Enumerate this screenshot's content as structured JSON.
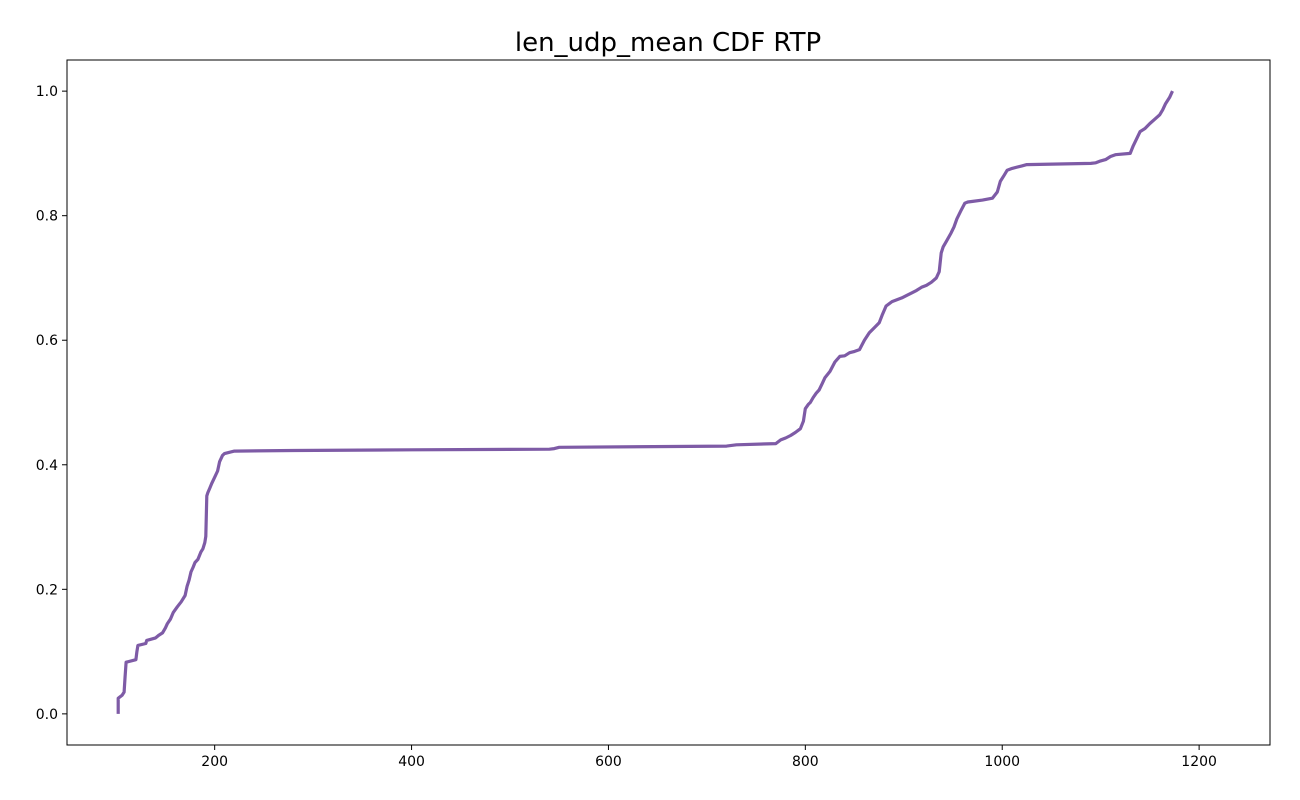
{
  "chart_data": {
    "type": "line",
    "title": "len_udp_mean CDF RTP",
    "xlabel": "",
    "ylabel": "",
    "xlim": [
      50,
      1272
    ],
    "ylim": [
      -0.05,
      1.05
    ],
    "x_ticks": [
      200,
      400,
      600,
      800,
      1000,
      1200
    ],
    "y_ticks": [
      0.0,
      0.2,
      0.4,
      0.6,
      0.8,
      1.0
    ],
    "x_tick_labels": [
      "200",
      "400",
      "600",
      "800",
      "1000",
      "1200"
    ],
    "y_tick_labels": [
      "0.0",
      "0.2",
      "0.4",
      "0.6",
      "0.8",
      "1.0"
    ],
    "grid": false,
    "legend": "none",
    "series": [
      {
        "color": "#7e5ba6",
        "x": [
          102,
          102,
          106,
          108,
          109,
          110,
          120,
          121,
          122,
          130,
          131,
          140,
          143,
          147,
          150,
          152,
          155,
          158,
          162,
          166,
          170,
          172,
          174,
          176,
          178,
          180,
          183,
          186,
          188,
          190,
          191,
          192,
          193,
          195,
          197,
          200,
          203,
          205,
          208,
          210,
          215,
          220,
          280,
          400,
          540,
          545,
          550,
          720,
          730,
          770,
          775,
          780,
          785,
          790,
          795,
          798,
          800,
          803,
          805,
          808,
          811,
          814,
          817,
          820,
          825,
          830,
          835,
          840,
          845,
          850,
          855,
          860,
          865,
          870,
          875,
          878,
          882,
          888,
          893,
          898,
          903,
          908,
          913,
          918,
          923,
          928,
          933,
          936,
          938,
          940,
          943,
          948,
          951,
          954,
          958,
          962,
          965,
          970,
          980,
          990,
          995,
          998,
          1002,
          1005,
          1010,
          1020,
          1025,
          1090,
          1095,
          1100,
          1105,
          1110,
          1115,
          1130,
          1133,
          1137,
          1140,
          1145,
          1150,
          1155,
          1160,
          1163,
          1166,
          1170,
          1173
        ],
        "y": [
          0.0,
          0.025,
          0.03,
          0.035,
          0.06,
          0.083,
          0.087,
          0.1,
          0.11,
          0.113,
          0.118,
          0.122,
          0.126,
          0.13,
          0.138,
          0.145,
          0.152,
          0.163,
          0.172,
          0.18,
          0.19,
          0.205,
          0.215,
          0.228,
          0.235,
          0.243,
          0.248,
          0.26,
          0.265,
          0.275,
          0.285,
          0.35,
          0.355,
          0.362,
          0.37,
          0.38,
          0.39,
          0.405,
          0.415,
          0.418,
          0.42,
          0.422,
          0.423,
          0.424,
          0.425,
          0.426,
          0.428,
          0.43,
          0.432,
          0.434,
          0.44,
          0.443,
          0.447,
          0.452,
          0.458,
          0.47,
          0.49,
          0.497,
          0.5,
          0.508,
          0.515,
          0.52,
          0.53,
          0.54,
          0.55,
          0.565,
          0.574,
          0.575,
          0.58,
          0.582,
          0.585,
          0.6,
          0.612,
          0.62,
          0.628,
          0.64,
          0.655,
          0.662,
          0.665,
          0.668,
          0.672,
          0.676,
          0.68,
          0.685,
          0.688,
          0.693,
          0.7,
          0.71,
          0.74,
          0.75,
          0.758,
          0.772,
          0.782,
          0.795,
          0.808,
          0.82,
          0.822,
          0.823,
          0.825,
          0.828,
          0.838,
          0.855,
          0.865,
          0.873,
          0.876,
          0.88,
          0.882,
          0.884,
          0.885,
          0.888,
          0.89,
          0.895,
          0.898,
          0.9,
          0.912,
          0.925,
          0.935,
          0.94,
          0.948,
          0.955,
          0.962,
          0.97,
          0.98,
          0.99,
          1.0
        ]
      }
    ]
  }
}
